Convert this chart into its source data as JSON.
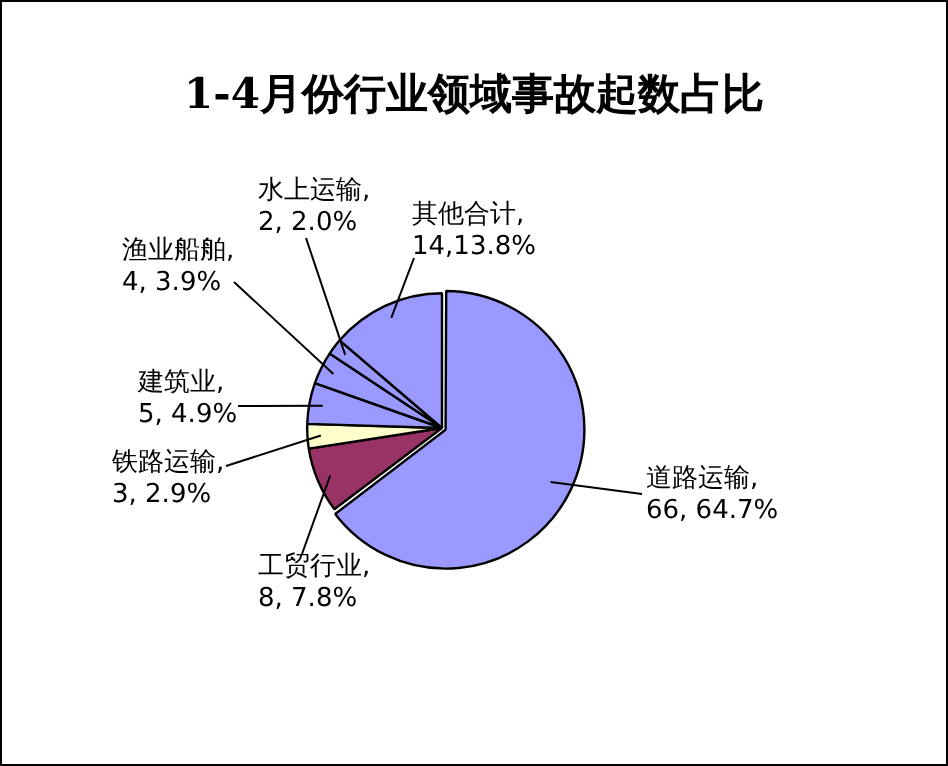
{
  "chart_data": {
    "type": "pie",
    "title": "1-4月份行业领域事故起数占比",
    "categories": [
      "道路运输",
      "工贸行业",
      "铁路运输",
      "建筑业",
      "渔业船舶",
      "水上运输",
      "其他合计"
    ],
    "values": [
      66,
      8,
      3,
      5,
      4,
      2,
      14
    ],
    "value_labels": [
      ",66, 64.7%",
      ",8, 7.8%",
      ",3, 2.9%",
      ",5, 4.9%",
      ",4, 3.9%",
      ",2, 2.0%",
      ",14,13.8%"
    ],
    "colors": [
      "#9999ff",
      "#993366",
      "#ffffcc",
      "#9999ff",
      "#9999ff",
      "#9999ff",
      "#9999ff"
    ],
    "legend": false
  }
}
